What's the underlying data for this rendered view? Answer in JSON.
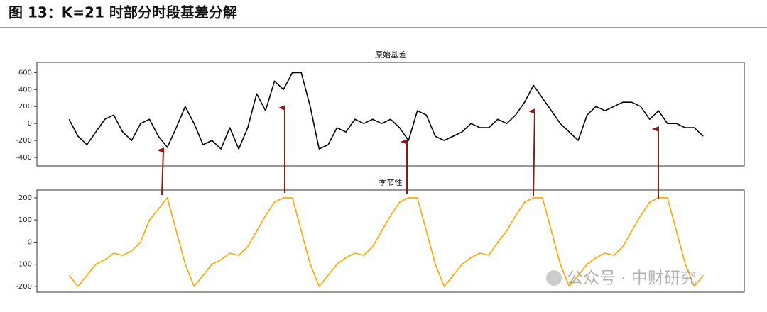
{
  "header": {
    "title": "图 13：K=21 时部分时段基差分解"
  },
  "watermark": "公众号 · 中财研究",
  "chart_data": [
    {
      "type": "line",
      "title": "原始基差",
      "xlim": [
        -3.6,
        75.6
      ],
      "ylim": [
        -500,
        720
      ],
      "yticks": [
        -400,
        -200,
        0,
        200,
        400,
        600
      ],
      "series": [
        {
          "color": "#000000",
          "values": [
            50,
            -150,
            -250,
            -100,
            50,
            100,
            -100,
            -200,
            0,
            50,
            -150,
            -280,
            -50,
            200,
            0,
            -250,
            -200,
            -300,
            -50,
            -300,
            -50,
            350,
            150,
            500,
            400,
            600,
            600,
            200,
            -300,
            -250,
            -50,
            -100,
            50,
            0,
            50,
            0,
            50,
            -50,
            -200,
            150,
            100,
            -150,
            -200,
            -150,
            -100,
            0,
            -50,
            -50,
            50,
            0,
            100,
            250,
            450,
            300,
            150,
            0,
            -100,
            -200,
            100,
            200,
            150,
            200,
            250,
            250,
            200,
            50,
            150,
            0,
            0,
            -50,
            -50,
            -150
          ]
        }
      ]
    },
    {
      "type": "line",
      "title": "季节性",
      "xlim": [
        -3.6,
        75.6
      ],
      "ylim": [
        -226,
        235
      ],
      "yticks": [
        -200,
        -100,
        0,
        100,
        200
      ],
      "series": [
        {
          "color": "#ffa500",
          "values": [
            -150,
            -200,
            -150,
            -100,
            -80,
            -50,
            -60,
            -40,
            0,
            100,
            150,
            200,
            50,
            -100,
            -200,
            -150,
            -100,
            -80,
            -50,
            -60,
            -20,
            50,
            120,
            180,
            200,
            200,
            50,
            -100,
            -200,
            -150,
            -100,
            -70,
            -50,
            -60,
            -20,
            50,
            120,
            180,
            200,
            200,
            50,
            -100,
            -200,
            -150,
            -100,
            -70,
            -50,
            -60,
            0,
            50,
            120,
            180,
            200,
            200,
            50,
            -100,
            -200,
            -150,
            -100,
            -70,
            -50,
            -60,
            -20,
            50,
            120,
            180,
            200,
            200,
            50,
            -100,
            -200,
            -150
          ]
        }
      ]
    }
  ]
}
